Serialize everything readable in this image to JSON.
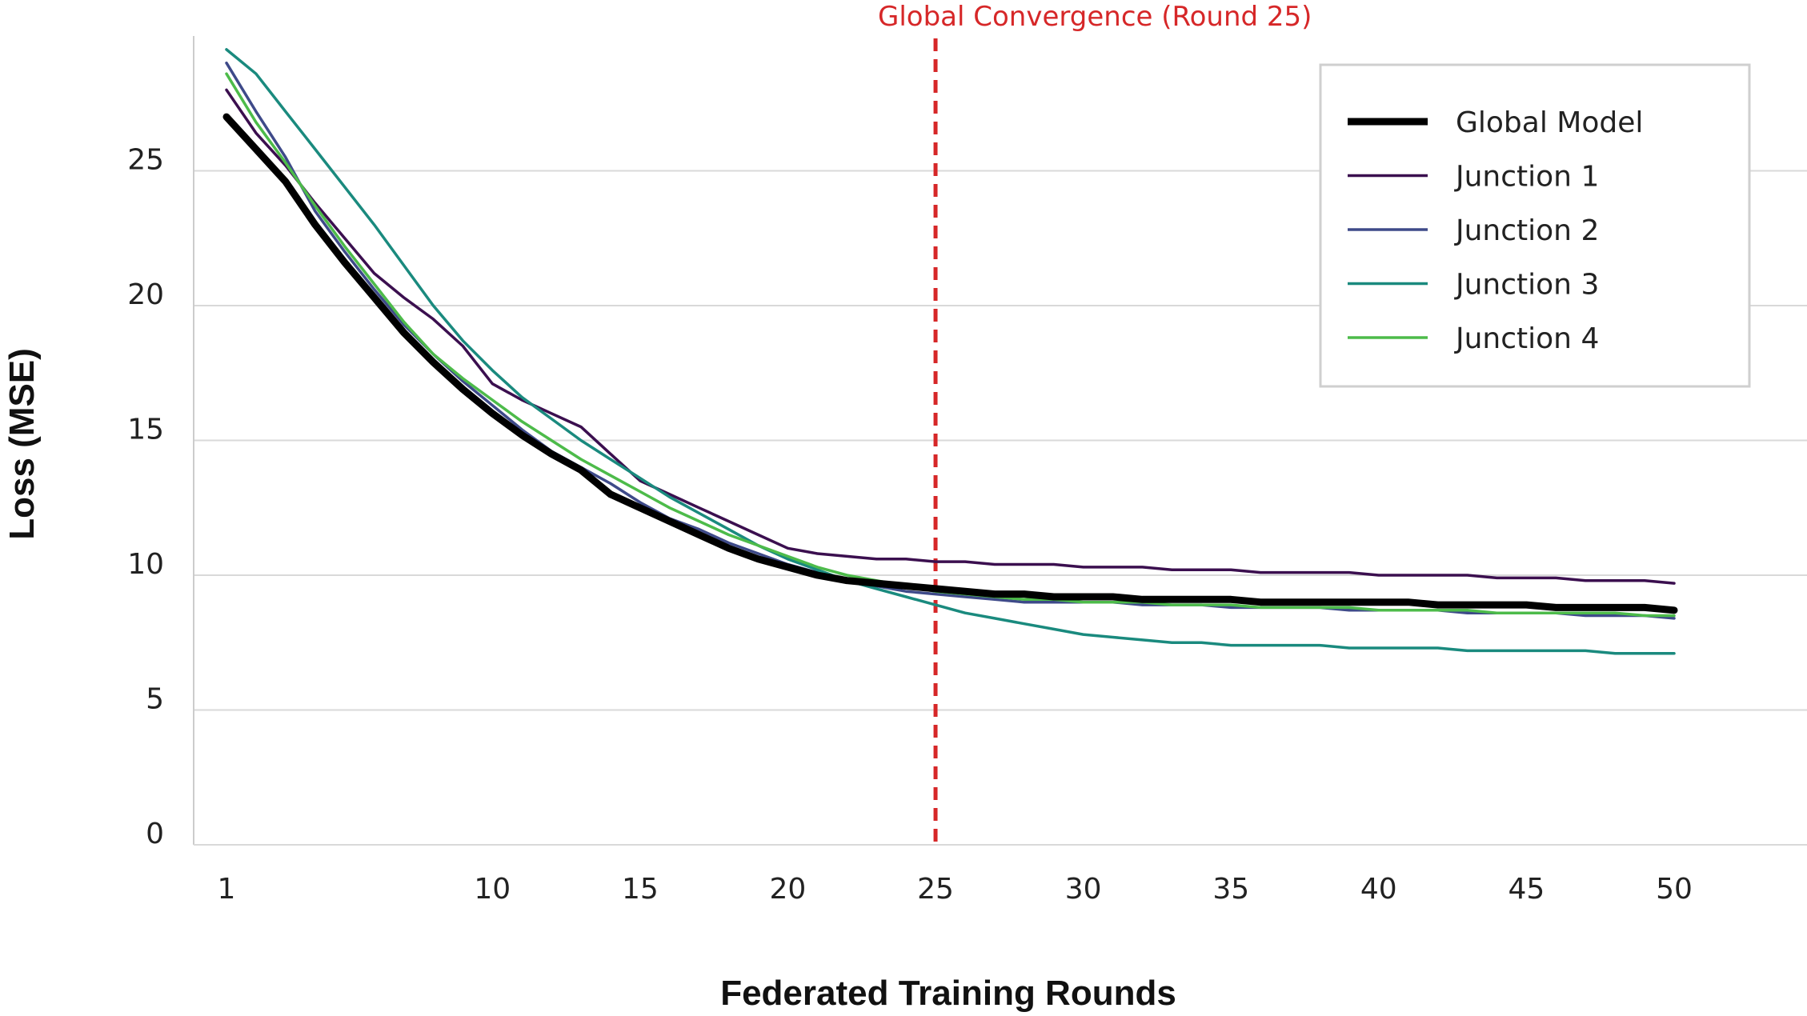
{
  "chart_data": {
    "type": "line",
    "title": "",
    "xlabel": "Federated Training Rounds",
    "ylabel": "Loss (MSE)",
    "xlim": [
      0,
      52.5
    ],
    "ylim": [
      0,
      30
    ],
    "x_ticks": [
      1,
      10,
      15,
      20,
      25,
      30,
      35,
      40,
      45,
      50
    ],
    "y_ticks": [
      0,
      5,
      10,
      15,
      20,
      25
    ],
    "grid": "horizontal",
    "legend_position": "top-right",
    "annotation": {
      "text": "Global Convergence (Round 25)",
      "x": 25,
      "color": "#d62728",
      "style": "dashed-vertical-line"
    },
    "x": [
      1,
      2,
      3,
      4,
      5,
      6,
      7,
      8,
      9,
      10,
      11,
      12,
      13,
      14,
      15,
      16,
      17,
      18,
      19,
      20,
      21,
      22,
      23,
      24,
      25,
      26,
      27,
      28,
      29,
      30,
      31,
      32,
      33,
      34,
      35,
      36,
      37,
      38,
      39,
      40,
      41,
      42,
      43,
      44,
      45,
      46,
      47,
      48,
      49,
      50
    ],
    "series": [
      {
        "name": "Global Model",
        "color": "#000000",
        "values": [
          27.0,
          25.8,
          24.6,
          23.0,
          21.6,
          20.3,
          19.0,
          17.9,
          16.9,
          16.0,
          15.2,
          14.5,
          13.9,
          13.0,
          12.5,
          12.0,
          11.5,
          11.0,
          10.6,
          10.3,
          10.0,
          9.8,
          9.7,
          9.6,
          9.5,
          9.4,
          9.3,
          9.3,
          9.2,
          9.2,
          9.2,
          9.1,
          9.1,
          9.1,
          9.1,
          9.0,
          9.0,
          9.0,
          9.0,
          9.0,
          9.0,
          8.9,
          8.9,
          8.9,
          8.9,
          8.8,
          8.8,
          8.8,
          8.8,
          8.7
        ]
      },
      {
        "name": "Junction 1",
        "color": "#3b0f4f",
        "values": [
          28.0,
          26.4,
          25.2,
          23.8,
          22.5,
          21.2,
          20.3,
          19.5,
          18.5,
          17.1,
          16.5,
          16.0,
          15.5,
          14.5,
          13.5,
          13.0,
          12.5,
          12.0,
          11.5,
          11.0,
          10.8,
          10.7,
          10.6,
          10.6,
          10.5,
          10.5,
          10.4,
          10.4,
          10.4,
          10.3,
          10.3,
          10.3,
          10.2,
          10.2,
          10.2,
          10.1,
          10.1,
          10.1,
          10.1,
          10.0,
          10.0,
          10.0,
          10.0,
          9.9,
          9.9,
          9.9,
          9.8,
          9.8,
          9.8,
          9.7
        ]
      },
      {
        "name": "Junction 2",
        "color": "#3e4a89",
        "values": [
          29.0,
          27.2,
          25.5,
          23.5,
          22.0,
          20.6,
          19.3,
          18.2,
          17.2,
          16.3,
          15.4,
          14.6,
          14.0,
          13.4,
          12.7,
          12.1,
          11.7,
          11.2,
          10.8,
          10.4,
          10.1,
          9.8,
          9.6,
          9.4,
          9.3,
          9.2,
          9.1,
          9.0,
          9.0,
          9.0,
          9.0,
          8.9,
          8.9,
          8.9,
          8.8,
          8.8,
          8.8,
          8.8,
          8.7,
          8.7,
          8.7,
          8.7,
          8.6,
          8.6,
          8.6,
          8.6,
          8.5,
          8.5,
          8.5,
          8.4
        ]
      },
      {
        "name": "Junction 3",
        "color": "#1a8a7e",
        "values": [
          29.5,
          28.6,
          27.2,
          25.8,
          24.4,
          23.0,
          21.5,
          20.0,
          18.7,
          17.6,
          16.6,
          15.8,
          15.0,
          14.3,
          13.6,
          12.9,
          12.3,
          11.7,
          11.1,
          10.6,
          10.2,
          9.8,
          9.5,
          9.2,
          8.9,
          8.6,
          8.4,
          8.2,
          8.0,
          7.8,
          7.7,
          7.6,
          7.5,
          7.5,
          7.4,
          7.4,
          7.4,
          7.4,
          7.3,
          7.3,
          7.3,
          7.3,
          7.2,
          7.2,
          7.2,
          7.2,
          7.2,
          7.1,
          7.1,
          7.1
        ]
      },
      {
        "name": "Junction 4",
        "color": "#4dbb4a",
        "values": [
          28.6,
          26.8,
          25.3,
          23.7,
          22.2,
          20.8,
          19.4,
          18.2,
          17.3,
          16.5,
          15.7,
          15.0,
          14.3,
          13.7,
          13.1,
          12.5,
          12.0,
          11.5,
          11.1,
          10.7,
          10.3,
          10.0,
          9.8,
          9.6,
          9.4,
          9.3,
          9.2,
          9.1,
          9.1,
          9.0,
          9.0,
          9.0,
          8.9,
          8.9,
          8.9,
          8.8,
          8.8,
          8.8,
          8.8,
          8.7,
          8.7,
          8.7,
          8.7,
          8.6,
          8.6,
          8.6,
          8.6,
          8.6,
          8.5,
          8.5
        ]
      }
    ]
  }
}
